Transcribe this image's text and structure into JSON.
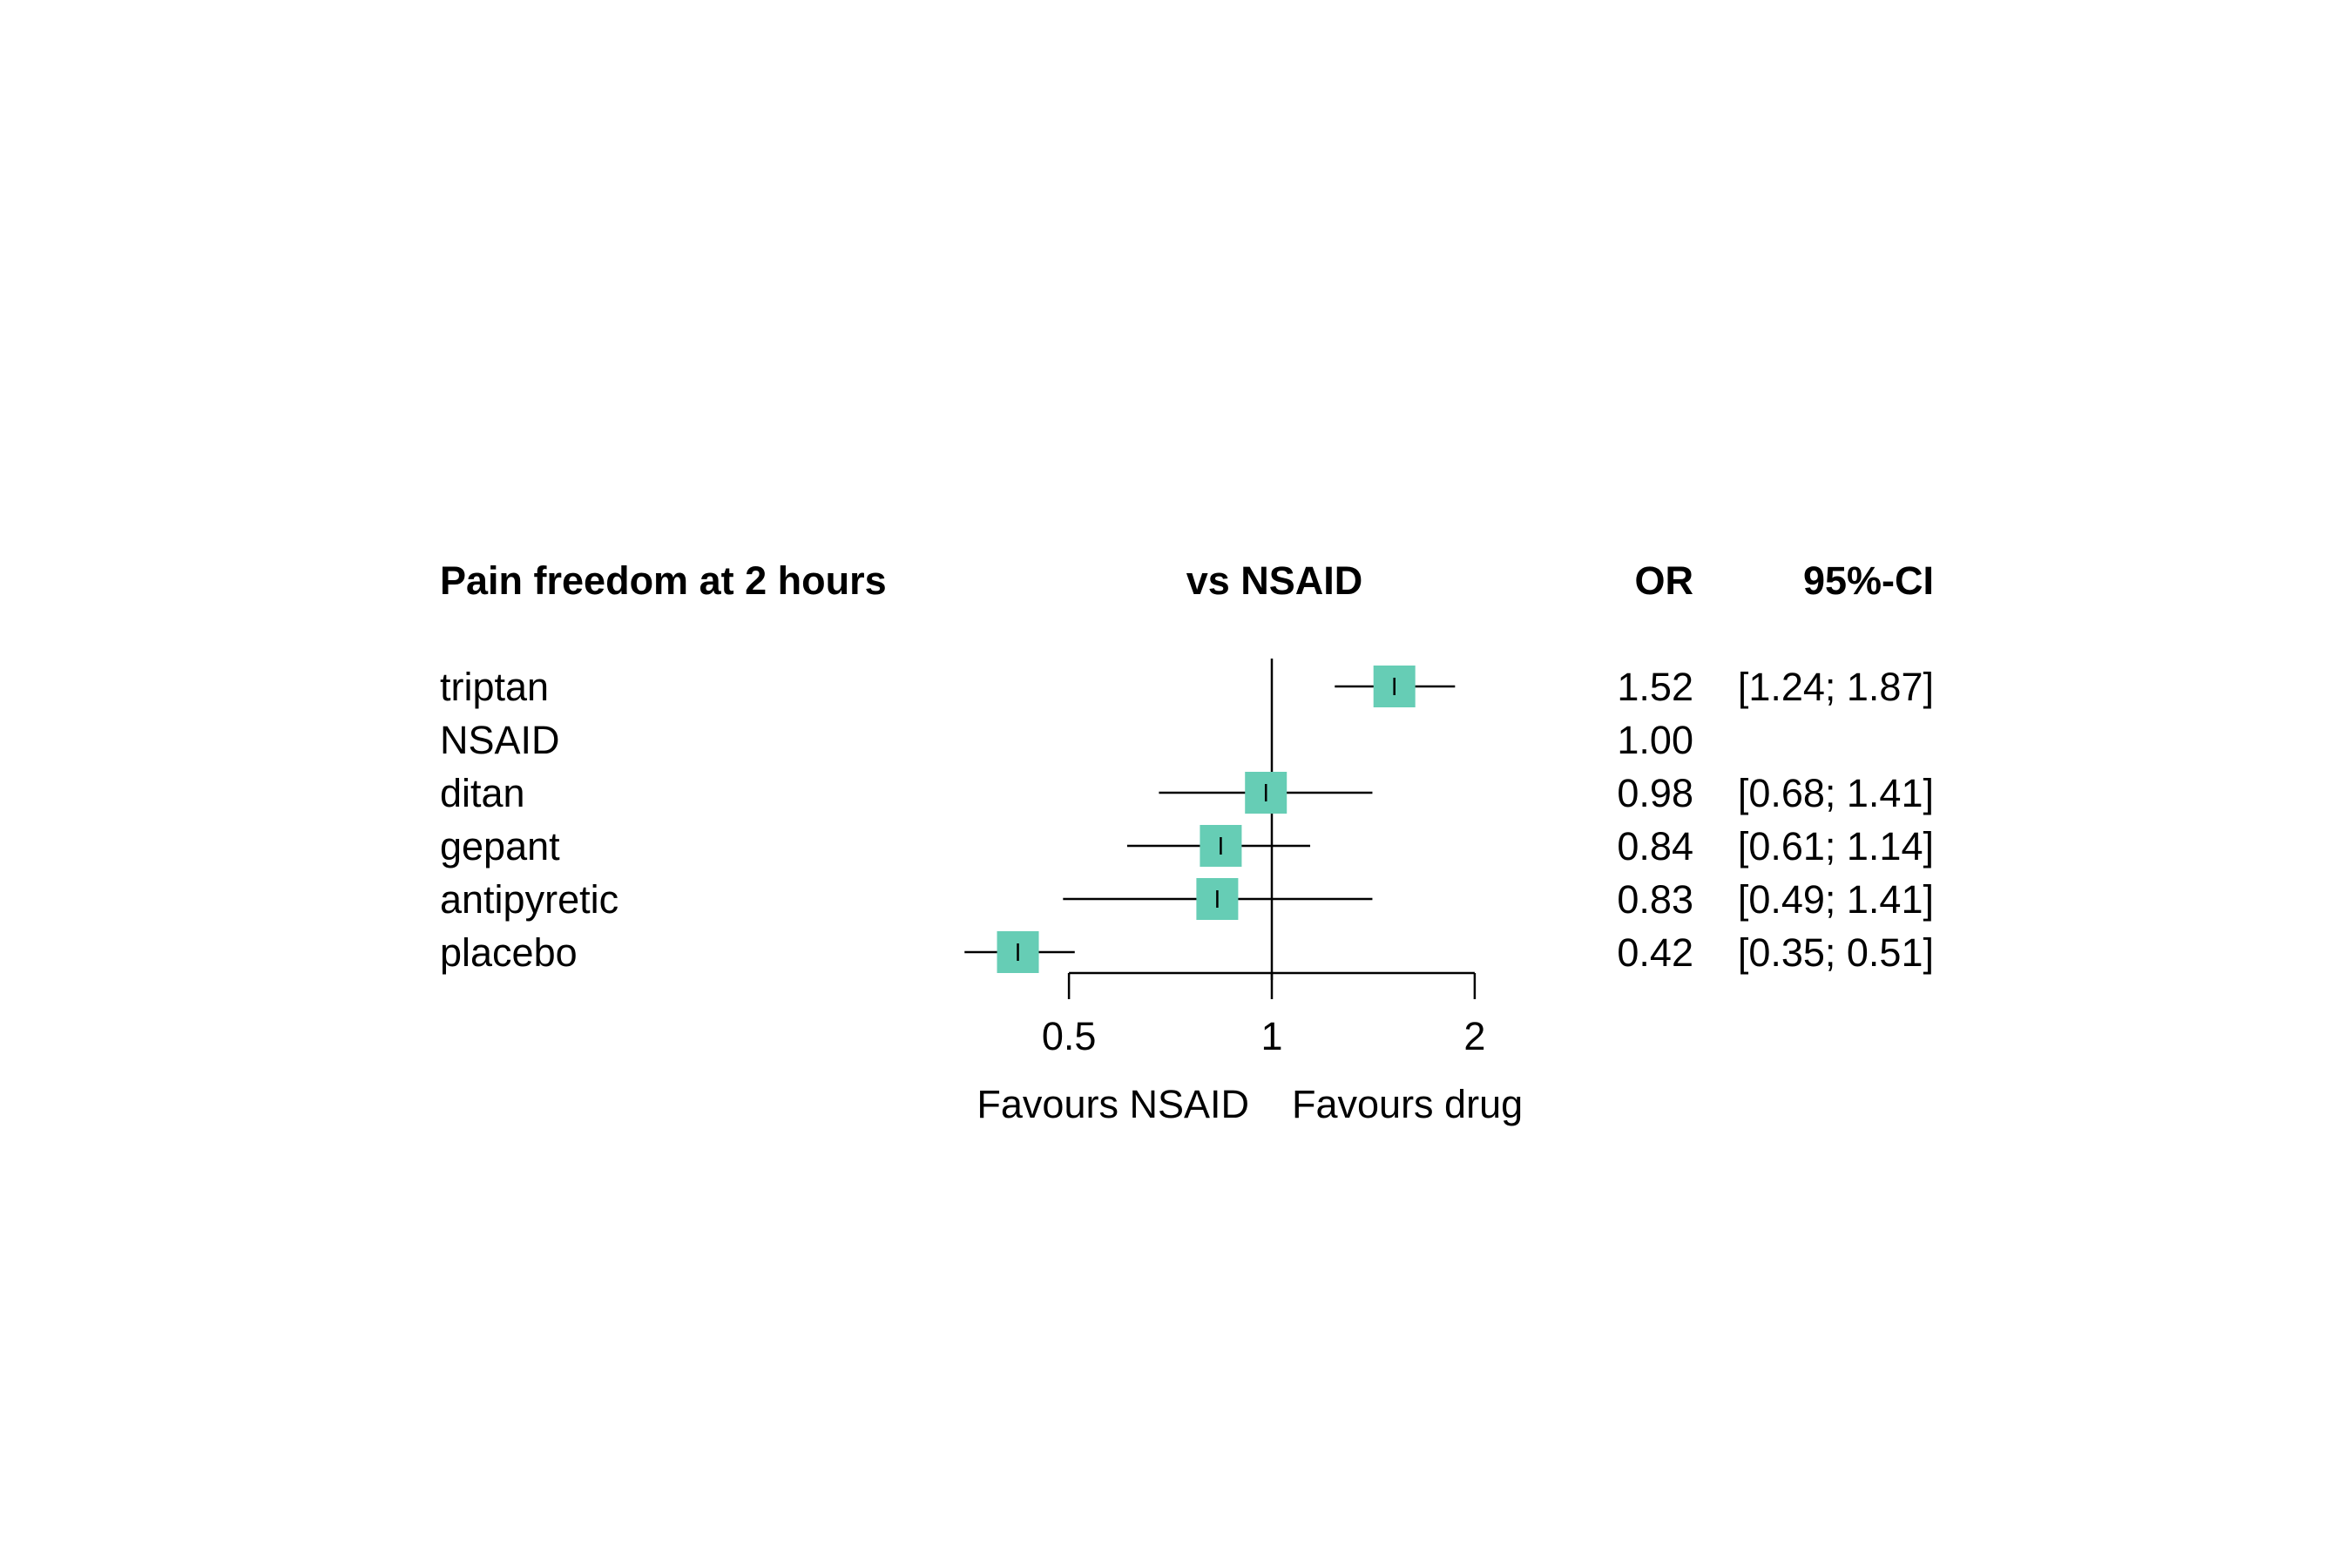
{
  "chart_data": {
    "type": "forest",
    "title": "Pain freedom at 2 hours",
    "plot_header": "vs NSAID",
    "columns": {
      "or": "OR",
      "ci": "95%-CI"
    },
    "x_scale": "log",
    "x_ticks": [
      {
        "value": 0.5,
        "label": "0.5"
      },
      {
        "value": 1,
        "label": "1"
      },
      {
        "value": 2,
        "label": "2"
      }
    ],
    "reference_value": 1,
    "left_label": "Favours NSAID",
    "right_label": "Favours drug",
    "box_color": "#66CDB5",
    "rows": [
      {
        "label": "triptan",
        "or": 1.52,
        "lower": 1.24,
        "upper": 1.87,
        "or_text": "1.52",
        "ci_text": "[1.24; 1.87]",
        "reference": false
      },
      {
        "label": "NSAID",
        "or": 1.0,
        "lower": 1.0,
        "upper": 1.0,
        "or_text": "1.00",
        "ci_text": "",
        "reference": true
      },
      {
        "label": "ditan",
        "or": 0.98,
        "lower": 0.68,
        "upper": 1.41,
        "or_text": "0.98",
        "ci_text": "[0.68; 1.41]",
        "reference": false
      },
      {
        "label": "gepant",
        "or": 0.84,
        "lower": 0.61,
        "upper": 1.14,
        "or_text": "0.84",
        "ci_text": "[0.61; 1.14]",
        "reference": false
      },
      {
        "label": "antipyretic",
        "or": 0.83,
        "lower": 0.49,
        "upper": 1.41,
        "or_text": "0.83",
        "ci_text": "[0.49; 1.41]",
        "reference": false
      },
      {
        "label": "placebo",
        "or": 0.42,
        "lower": 0.35,
        "upper": 0.51,
        "or_text": "0.42",
        "ci_text": "[0.35; 0.51]",
        "reference": false
      }
    ]
  }
}
